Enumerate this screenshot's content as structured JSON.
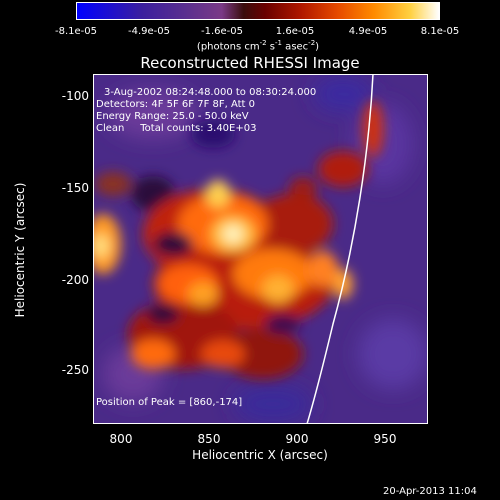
{
  "colorbar": {
    "tick_labels": [
      "-8.1e-05",
      "-4.9e-05",
      "-1.6e-05",
      "1.6e-05",
      "4.9e-05",
      "8.1e-05"
    ],
    "units_prefix": "(photons cm",
    "units_exp1": "-2",
    "units_mid1": " s",
    "units_exp2": "-1",
    "units_mid2": " asec",
    "units_exp3": "-2",
    "units_suffix": ")"
  },
  "title": "Reconstructed RHESSI Image",
  "info": {
    "line1": "3-Aug-2002 08:24:48.000 to 08:30:24.000",
    "line2": "Detectors: 4F 5F 6F 7F 8F, Att 0",
    "line3": "Energy Range: 25.0 - 50.0 keV",
    "line4": "Clean     Total counts: 3.40E+03",
    "peak": "Position of Peak = [860,-174]"
  },
  "axes": {
    "xlabel": "Heliocentric X (arcsec)",
    "ylabel": "Heliocentric Y (arcsec)",
    "xticks": [
      "800",
      "850",
      "900",
      "950"
    ],
    "yticks": [
      "-100",
      "-150",
      "-200",
      "-250"
    ],
    "xlim": [
      777,
      968
    ],
    "ylim": [
      -280,
      -89
    ]
  },
  "timestamp": "20-Apr-2013 11:04",
  "colors": {
    "background": "#000000",
    "limb_line": "#ffffff",
    "negative_low": "#0000ff",
    "negative_mid": "#5a2f8f",
    "positive_mid": "#d02800",
    "positive_high": "#ffffff"
  }
}
